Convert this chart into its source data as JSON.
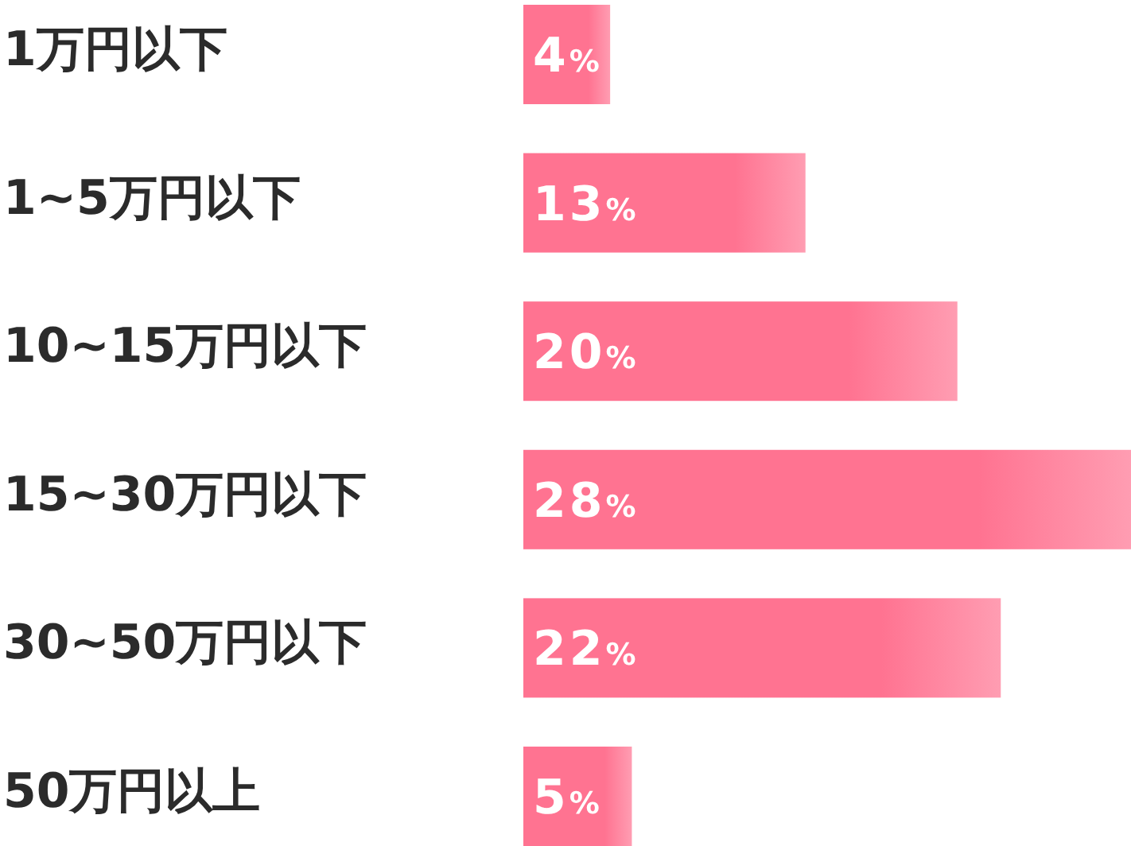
{
  "chart_data": {
    "type": "bar",
    "orientation": "horizontal",
    "categories": [
      "1万円以下",
      "1~5万円以下",
      "10~15万円以下",
      "15~30万円以下",
      "30~50万円以下",
      "50万円以上"
    ],
    "values": [
      4,
      13,
      20,
      28,
      22,
      5
    ],
    "value_labels": [
      "4%",
      "13%",
      "20%",
      "28%",
      "22%",
      "5%"
    ],
    "color": "#ff7391"
  }
}
